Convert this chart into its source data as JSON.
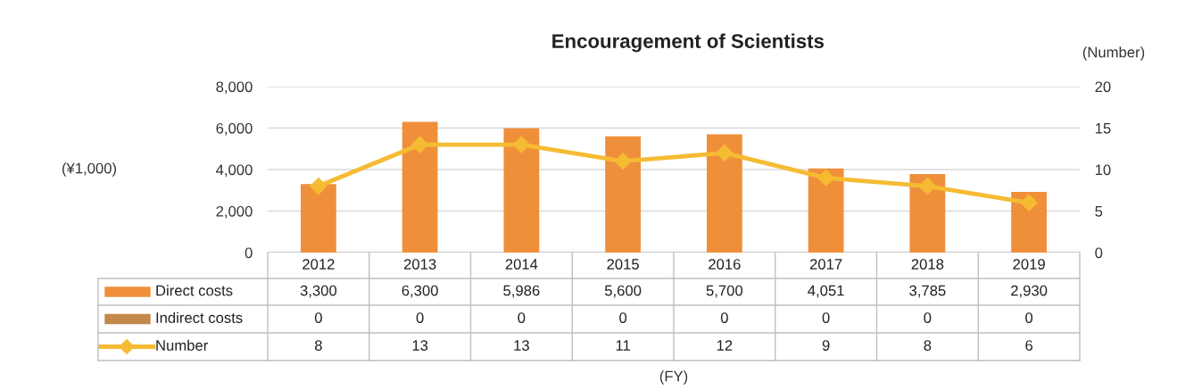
{
  "chart_data": {
    "type": "bar",
    "title": "Encouragement of Scientists",
    "y2label": "(Number)",
    "annotations": [
      "(¥1,000)",
      "(FY)"
    ],
    "categories": [
      "2012",
      "2013",
      "2014",
      "2015",
      "2016",
      "2017",
      "2018",
      "2019"
    ],
    "series": [
      {
        "name": "Direct costs",
        "color": "#f08f3a",
        "values": [
          3300,
          6300,
          5986,
          5600,
          5700,
          4051,
          3785,
          2930
        ],
        "value_labels": [
          "3,300",
          "6,300",
          "5,986",
          "5,600",
          "5,700",
          "4,051",
          "3,785",
          "2,930"
        ]
      },
      {
        "name": "Indirect costs",
        "color": "#c3884c",
        "values": [
          0,
          0,
          0,
          0,
          0,
          0,
          0,
          0
        ]
      },
      {
        "name": "Number",
        "type": "line",
        "axis": "y2",
        "color": "#f5bb33",
        "marker": "diamond",
        "values": [
          8,
          13,
          13,
          11,
          12,
          9,
          8,
          6
        ]
      }
    ],
    "ylim": [
      0,
      8000
    ],
    "yticks": [
      {
        "value": 0,
        "label": "0"
      },
      {
        "value": 2000,
        "label": "2,000"
      },
      {
        "value": 4000,
        "label": "4,000"
      },
      {
        "value": 6000,
        "label": "6,000"
      },
      {
        "value": 8000,
        "label": "8,000"
      }
    ],
    "y2lim": [
      0,
      20
    ],
    "y2ticks": [
      0,
      5,
      10,
      15,
      20
    ],
    "grid": "y",
    "legend": "bottom",
    "data_labels": true
  }
}
